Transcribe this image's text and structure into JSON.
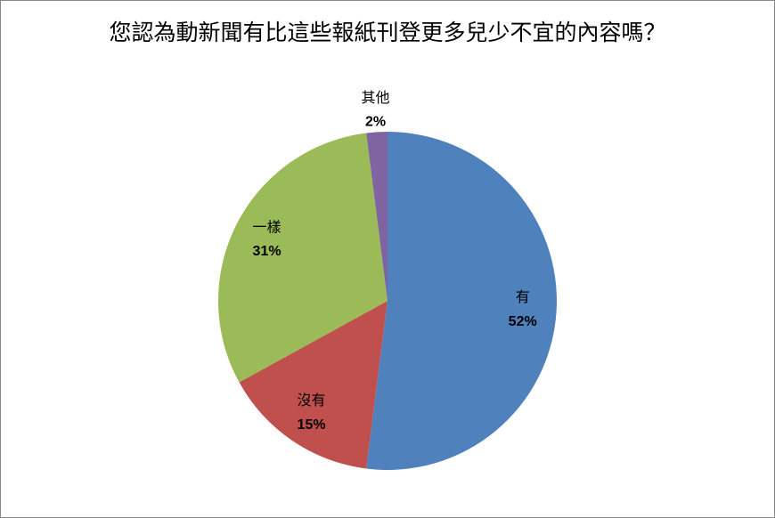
{
  "chart_data": {
    "type": "pie",
    "title": "您認為動新聞有比這些報紙刊登更多兒少不宜的內容嗎？",
    "categories": [
      "有",
      "沒有",
      "一樣",
      "其他"
    ],
    "values": [
      52,
      15,
      31,
      2
    ],
    "value_labels": [
      "52%",
      "15%",
      "31%",
      "2%"
    ],
    "colors": [
      "#4f81bd",
      "#c0504d",
      "#9bbb59",
      "#8064a2"
    ]
  }
}
